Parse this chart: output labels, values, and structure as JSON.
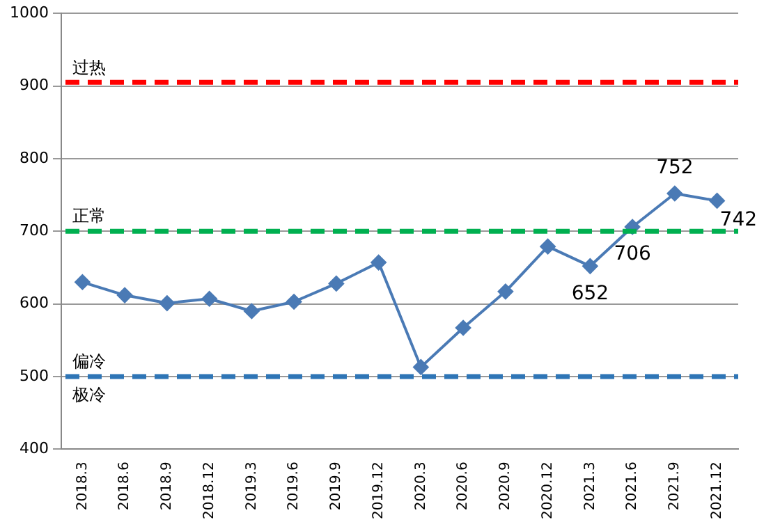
{
  "chart_data": {
    "type": "line",
    "categories": [
      "2018.3",
      "2018.6",
      "2018.9",
      "2018.12",
      "2019.3",
      "2019.6",
      "2019.9",
      "2019.12",
      "2020.3",
      "2020.6",
      "2020.9",
      "2020.12",
      "2021.3",
      "2021.6",
      "2021.9",
      "2021.12"
    ],
    "series": [
      {
        "color": "#4a7ab5",
        "values": [
          630,
          612,
          601,
          607,
          590,
          603,
          628,
          657,
          513,
          567,
          617,
          679,
          652,
          706,
          752,
          742
        ],
        "value_labels": [
          null,
          null,
          null,
          null,
          null,
          null,
          null,
          null,
          null,
          null,
          null,
          null,
          "652",
          "706",
          "752",
          "742"
        ]
      }
    ],
    "ylim": [
      400,
      1000
    ],
    "yticks": [
      400,
      500,
      600,
      700,
      800,
      900,
      1000
    ],
    "grid": "y",
    "legend": false,
    "marker": "diamond",
    "line_style": "solid",
    "ref_lines": [
      {
        "axis": "y",
        "value": 905,
        "label": "过热",
        "color": "#ff0000",
        "line_style": "dashed"
      },
      {
        "axis": "y",
        "value": 700,
        "label": "正常",
        "color": "#00b050",
        "line_style": "dashed"
      },
      {
        "axis": "y",
        "value": 500,
        "label": "偏冷",
        "color": "#2e75b6",
        "line_style": "dashed"
      }
    ],
    "annotations": [
      "极冷"
    ]
  }
}
